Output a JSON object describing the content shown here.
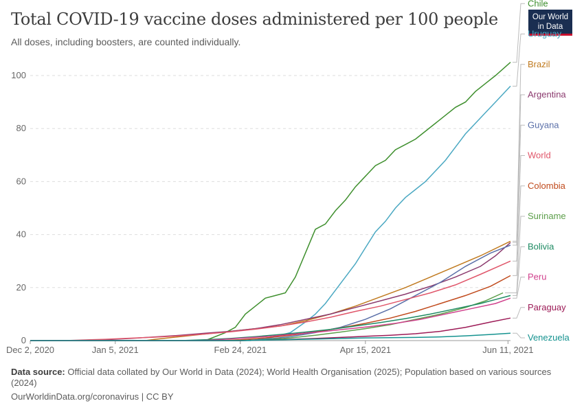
{
  "title": "Total COVID-19 vaccine doses administered per 100 people",
  "subtitle": "All doses, including boosters, are counted individually.",
  "logo": {
    "line1": "Our World",
    "line2": "in Data"
  },
  "source": {
    "label": "Data source:",
    "text": "Official data collated by Our World in Data (2024); World Health Organisation (2025); Population based on various sources (2024)"
  },
  "footer": "OurWorldinData.org/coronavirus | CC BY",
  "chart_data": {
    "type": "line",
    "title": "Total COVID-19 vaccine doses administered per 100 people",
    "subtitle": "All doses, including boosters, are counted individually.",
    "x_ticks": [
      {
        "label": "Dec 2, 2020",
        "day": 0
      },
      {
        "label": "Jan 5, 2021",
        "day": 34
      },
      {
        "label": "Feb 24, 2021",
        "day": 84
      },
      {
        "label": "Apr 15, 2021",
        "day": 134
      },
      {
        "label": "Jun 11, 2021",
        "day": 191
      }
    ],
    "x_range_days": [
      0,
      192
    ],
    "ylim": [
      0,
      105
    ],
    "y_ticks": [
      0,
      20,
      40,
      60,
      80,
      100
    ],
    "grid": "horizontal dashed",
    "legend": "right, line-end labels",
    "series": [
      {
        "name": "Chile",
        "color": "#3e8f2d",
        "points": [
          [
            0,
            0
          ],
          [
            70,
            0
          ],
          [
            78,
            3
          ],
          [
            82,
            5
          ],
          [
            86,
            10
          ],
          [
            90,
            13
          ],
          [
            94,
            16
          ],
          [
            98,
            17
          ],
          [
            102,
            18
          ],
          [
            106,
            24
          ],
          [
            110,
            33
          ],
          [
            114,
            42
          ],
          [
            118,
            44
          ],
          [
            122,
            49
          ],
          [
            126,
            53
          ],
          [
            130,
            58
          ],
          [
            134,
            62
          ],
          [
            138,
            66
          ],
          [
            142,
            68
          ],
          [
            146,
            72
          ],
          [
            150,
            74
          ],
          [
            154,
            76
          ],
          [
            158,
            79
          ],
          [
            162,
            82
          ],
          [
            166,
            85
          ],
          [
            170,
            88
          ],
          [
            174,
            90
          ],
          [
            178,
            94
          ],
          [
            182,
            97
          ],
          [
            186,
            100
          ],
          [
            192,
            105
          ]
        ]
      },
      {
        "name": "Uruguay",
        "color": "#4aa8c2",
        "points": [
          [
            0,
            0
          ],
          [
            88,
            0
          ],
          [
            96,
            1
          ],
          [
            104,
            3
          ],
          [
            110,
            7
          ],
          [
            114,
            10
          ],
          [
            118,
            14
          ],
          [
            122,
            19
          ],
          [
            126,
            24
          ],
          [
            130,
            29
          ],
          [
            134,
            35
          ],
          [
            138,
            41
          ],
          [
            142,
            45
          ],
          [
            146,
            50
          ],
          [
            150,
            54
          ],
          [
            154,
            57
          ],
          [
            158,
            60
          ],
          [
            162,
            64
          ],
          [
            166,
            68
          ],
          [
            170,
            73
          ],
          [
            174,
            78
          ],
          [
            178,
            82
          ],
          [
            182,
            86
          ],
          [
            186,
            90
          ],
          [
            192,
            96
          ]
        ]
      },
      {
        "name": "Brazil",
        "color": "#c07a1f",
        "points": [
          [
            0,
            0
          ],
          [
            46,
            0
          ],
          [
            50,
            0.5
          ],
          [
            60,
            1.5
          ],
          [
            70,
            2.5
          ],
          [
            80,
            3.5
          ],
          [
            90,
            4.5
          ],
          [
            100,
            5.5
          ],
          [
            110,
            7.5
          ],
          [
            120,
            10
          ],
          [
            130,
            13
          ],
          [
            140,
            16.5
          ],
          [
            150,
            20
          ],
          [
            160,
            24
          ],
          [
            170,
            28
          ],
          [
            180,
            32
          ],
          [
            192,
            37.5
          ]
        ]
      },
      {
        "name": "Argentina",
        "color": "#8b3a6e",
        "points": [
          [
            0,
            0
          ],
          [
            24,
            0
          ],
          [
            30,
            0.3
          ],
          [
            40,
            0.8
          ],
          [
            50,
            1.4
          ],
          [
            60,
            2
          ],
          [
            70,
            2.8
          ],
          [
            80,
            3.5
          ],
          [
            90,
            4.5
          ],
          [
            100,
            6
          ],
          [
            110,
            8
          ],
          [
            120,
            10
          ],
          [
            130,
            12.5
          ],
          [
            140,
            15
          ],
          [
            150,
            17.5
          ],
          [
            160,
            20.5
          ],
          [
            170,
            24
          ],
          [
            180,
            28
          ],
          [
            186,
            32
          ],
          [
            192,
            37
          ]
        ]
      },
      {
        "name": "Guyana",
        "color": "#5a6fa8",
        "points": [
          [
            0,
            0
          ],
          [
            84,
            0
          ],
          [
            94,
            0.5
          ],
          [
            104,
            1.5
          ],
          [
            114,
            3
          ],
          [
            124,
            5
          ],
          [
            134,
            8
          ],
          [
            144,
            12
          ],
          [
            154,
            17
          ],
          [
            164,
            22
          ],
          [
            174,
            28
          ],
          [
            184,
            33
          ],
          [
            192,
            36
          ]
        ]
      },
      {
        "name": "World",
        "color": "#e0566a",
        "points": [
          [
            0,
            0
          ],
          [
            14,
            0
          ],
          [
            20,
            0.2
          ],
          [
            30,
            0.5
          ],
          [
            40,
            0.9
          ],
          [
            50,
            1.3
          ],
          [
            60,
            1.8
          ],
          [
            70,
            2.5
          ],
          [
            80,
            3.3
          ],
          [
            90,
            4.3
          ],
          [
            100,
            5.5
          ],
          [
            110,
            7
          ],
          [
            120,
            8.8
          ],
          [
            130,
            11
          ],
          [
            140,
            13
          ],
          [
            150,
            15.5
          ],
          [
            160,
            18
          ],
          [
            170,
            21
          ],
          [
            180,
            25
          ],
          [
            192,
            30
          ]
        ]
      },
      {
        "name": "Colombia",
        "color": "#c04a1c",
        "points": [
          [
            0,
            0
          ],
          [
            76,
            0
          ],
          [
            84,
            0.3
          ],
          [
            94,
            1
          ],
          [
            104,
            2
          ],
          [
            114,
            3.3
          ],
          [
            124,
            4.8
          ],
          [
            134,
            6.5
          ],
          [
            144,
            8.5
          ],
          [
            154,
            11
          ],
          [
            164,
            14
          ],
          [
            174,
            17
          ],
          [
            184,
            20.5
          ],
          [
            192,
            24.5
          ]
        ]
      },
      {
        "name": "Suriname",
        "color": "#5c9e4a",
        "points": [
          [
            0,
            0
          ],
          [
            84,
            0
          ],
          [
            94,
            0.3
          ],
          [
            104,
            1
          ],
          [
            114,
            2
          ],
          [
            124,
            3.2
          ],
          [
            134,
            4.5
          ],
          [
            144,
            6
          ],
          [
            154,
            8
          ],
          [
            164,
            10
          ],
          [
            174,
            12.5
          ],
          [
            182,
            15
          ],
          [
            189,
            18
          ]
        ]
      },
      {
        "name": "Bolivia",
        "color": "#1d8a62",
        "points": [
          [
            0,
            0
          ],
          [
            60,
            0
          ],
          [
            70,
            0.3
          ],
          [
            80,
            0.8
          ],
          [
            90,
            1.5
          ],
          [
            100,
            2.3
          ],
          [
            110,
            3.2
          ],
          [
            120,
            4.2
          ],
          [
            130,
            5.5
          ],
          [
            140,
            6.8
          ],
          [
            150,
            8.3
          ],
          [
            160,
            10
          ],
          [
            170,
            12
          ],
          [
            180,
            14
          ],
          [
            186,
            15.5
          ],
          [
            192,
            17
          ]
        ]
      },
      {
        "name": "Peru",
        "color": "#d0408c",
        "points": [
          [
            0,
            0
          ],
          [
            68,
            0
          ],
          [
            76,
            0.4
          ],
          [
            86,
            1
          ],
          [
            96,
            1.6
          ],
          [
            106,
            2.5
          ],
          [
            116,
            3.3
          ],
          [
            126,
            4.3
          ],
          [
            136,
            5.3
          ],
          [
            146,
            6.5
          ],
          [
            156,
            8
          ],
          [
            166,
            10
          ],
          [
            176,
            12
          ],
          [
            186,
            14
          ],
          [
            192,
            16
          ]
        ]
      },
      {
        "name": "Paraguay",
        "color": "#9c1a56",
        "points": [
          [
            0,
            0
          ],
          [
            84,
            0
          ],
          [
            94,
            0.2
          ],
          [
            104,
            0.5
          ],
          [
            114,
            0.8
          ],
          [
            124,
            1.2
          ],
          [
            134,
            1.6
          ],
          [
            144,
            2
          ],
          [
            154,
            2.6
          ],
          [
            164,
            3.5
          ],
          [
            174,
            5
          ],
          [
            184,
            7
          ],
          [
            192,
            8.5
          ]
        ]
      },
      {
        "name": "Venezuela",
        "color": "#14928f",
        "points": [
          [
            0,
            0
          ],
          [
            84,
            0
          ],
          [
            94,
            0.2
          ],
          [
            104,
            0.4
          ],
          [
            114,
            0.6
          ],
          [
            124,
            0.8
          ],
          [
            134,
            1
          ],
          [
            144,
            1.1
          ],
          [
            154,
            1.2
          ],
          [
            164,
            1.4
          ],
          [
            174,
            1.8
          ],
          [
            184,
            2.3
          ],
          [
            192,
            2.8
          ]
        ]
      }
    ]
  }
}
